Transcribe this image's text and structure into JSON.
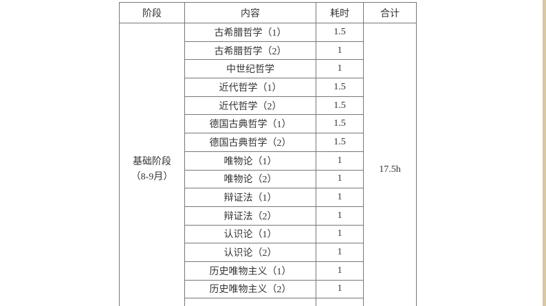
{
  "page": {
    "background_color": "#ffffff",
    "right_strip_color": "#d8c9a0",
    "border_color": "#767676",
    "text_color": "#333333"
  },
  "table": {
    "headers": [
      "阶段",
      "内容",
      "耗时",
      "合计"
    ],
    "stage": {
      "line1": "基础阶段",
      "line2": "（8-9月）"
    },
    "total": "17.5h",
    "rows": [
      {
        "content": "古希腊哲学（1）",
        "time": "1.5"
      },
      {
        "content": "古希腊哲学（2）",
        "time": "1"
      },
      {
        "content": "中世纪哲学",
        "time": "1"
      },
      {
        "content": "近代哲学（1）",
        "time": "1.5"
      },
      {
        "content": "近代哲学（2）",
        "time": "1.5"
      },
      {
        "content": "德国古典哲学（1）",
        "time": "1.5"
      },
      {
        "content": "德国古典哲学（2）",
        "time": "1.5"
      },
      {
        "content": "唯物论（1）",
        "time": "1"
      },
      {
        "content": "唯物论（2）",
        "time": "1"
      },
      {
        "content": "辩证法（1）",
        "time": "1"
      },
      {
        "content": "辩证法（2）",
        "time": "1"
      },
      {
        "content": "认识论（1）",
        "time": "1"
      },
      {
        "content": "认识论（2）",
        "time": "1"
      },
      {
        "content": "历史唯物主义（1）",
        "time": "1"
      },
      {
        "content": "历史唯物主义（2）",
        "time": "1"
      }
    ]
  }
}
